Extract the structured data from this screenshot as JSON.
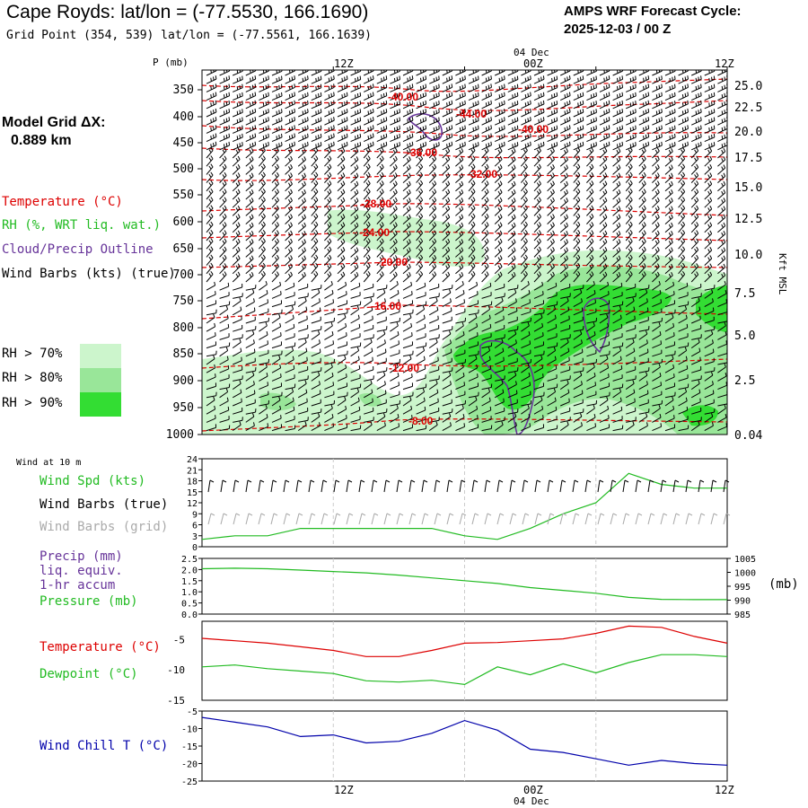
{
  "header": {
    "title": "Cape Royds:  lat/lon = (-77.5530, 166.1690)",
    "grid_point": "Grid Point (354, 539) lat/lon = (-77.5561, 166.1639)",
    "forecast_line1": "AMPS WRF Forecast Cycle:",
    "forecast_line2": "2025-12-03 / 00  Z"
  },
  "left_panel": {
    "model_grid_label": "Model Grid ΔX:",
    "model_grid_value": "0.889 km",
    "legend": {
      "temperature": "Temperature (°C)",
      "rh": "RH (%, WRT liq. wat.)",
      "cloud": "Cloud/Precip Outline",
      "wind": "Wind Barbs (kts) (true)"
    },
    "rh_levels": [
      "RH > 70%",
      "RH > 80%",
      "RH > 90%"
    ]
  },
  "time_axis": {
    "labels": [
      "12Z",
      "00Z",
      "12Z"
    ],
    "date_label": "04 Dec"
  },
  "colors": {
    "temperature": "#dd0000",
    "rh70": "#ccf5cc",
    "rh80": "#99e699",
    "rh90": "#33dd33",
    "cloud": "#663399",
    "green": "#22bb22",
    "dewpoint": "#22bb22",
    "windchill": "#0000aa",
    "grid_barbs": "#aaaaaa"
  },
  "chart_data": [
    {
      "type": "contour",
      "name": "upper-cross-section",
      "ylabel_left": "P (mb)",
      "ylabel_right": "Kft MSL",
      "pressure_ticks": [
        "350",
        "400",
        "450",
        "500",
        "550",
        "600",
        "650",
        "700",
        "750",
        "800",
        "850",
        "900",
        "950",
        "1000"
      ],
      "height_ticks": [
        "25.0",
        "22.5",
        "20.0",
        "17.5",
        "15.0",
        "12.5",
        "10.0",
        "7.5",
        "5.0",
        "2.5",
        "0.04"
      ],
      "temperature_contour_labels": [
        "-40.00",
        "-44.00",
        "-40.00",
        "-36.00",
        "-32.00",
        "-28.00",
        "-24.00",
        "-20.00",
        "-16.00",
        "-12.00",
        "-8.00"
      ]
    },
    {
      "type": "line",
      "name": "wind-10m",
      "panel_title": "Wind at 10 m",
      "labels": [
        "Wind Spd (kts)",
        "Wind Barbs (true)",
        "Wind Barbs (grid)"
      ],
      "y_ticks": [
        "24",
        "21",
        "18",
        "15",
        "12",
        "9",
        "6",
        "3",
        "0"
      ],
      "ylim": [
        0,
        24
      ],
      "series": [
        {
          "name": "Wind Spd (kts)",
          "x": [
            0,
            3,
            6,
            9,
            12,
            15,
            18,
            21,
            24,
            27,
            30,
            33,
            36,
            39,
            42,
            45,
            48
          ],
          "values": [
            2,
            3,
            3,
            5,
            5,
            5,
            5,
            5,
            3,
            2,
            5,
            9,
            12,
            20,
            17,
            16,
            16
          ]
        }
      ]
    },
    {
      "type": "line",
      "name": "precip-pressure",
      "labels": [
        "Precip (mm)",
        "liq. equiv.",
        "1-hr accum",
        "Pressure (mb)"
      ],
      "left_ticks": [
        "2.5",
        "2.0",
        "1.5",
        "1.0",
        "0.5",
        "0.0"
      ],
      "right_ticks": [
        "1005",
        "1000",
        "995",
        "990",
        "985"
      ],
      "right_unit": "(mb)",
      "left_ylim": [
        0,
        2.5
      ],
      "right_ylim": [
        985,
        1005
      ],
      "series": [
        {
          "name": "Pressure (mb)",
          "x": [
            0,
            3,
            6,
            9,
            12,
            15,
            18,
            21,
            24,
            27,
            30,
            33,
            36,
            39,
            42,
            45,
            48
          ],
          "values": [
            1001.3,
            1001.5,
            1001.3,
            1000.8,
            1000.3,
            999.8,
            999,
            998,
            997,
            996,
            994.5,
            993.5,
            992.5,
            991,
            990.3,
            990.2,
            990.2
          ]
        }
      ]
    },
    {
      "type": "line",
      "name": "temp-dewpoint",
      "labels": [
        "Temperature (°C)",
        "Dewpoint (°C)"
      ],
      "y_ticks": [
        "-5",
        "-10",
        "-15"
      ],
      "ylim": [
        -15,
        -2
      ],
      "series": [
        {
          "name": "Temperature",
          "x": [
            0,
            3,
            6,
            9,
            12,
            15,
            18,
            21,
            24,
            27,
            30,
            33,
            36,
            39,
            42,
            45,
            48
          ],
          "values": [
            -4.8,
            -5.2,
            -5.6,
            -6.2,
            -6.8,
            -7.8,
            -7.8,
            -6.8,
            -5.6,
            -5.5,
            -5.2,
            -4.9,
            -4.0,
            -2.8,
            -3.0,
            -4.5,
            -5.6
          ]
        },
        {
          "name": "Dewpoint",
          "x": [
            0,
            3,
            6,
            9,
            12,
            15,
            18,
            21,
            24,
            27,
            30,
            33,
            36,
            39,
            42,
            45,
            48
          ],
          "values": [
            -9.5,
            -9.2,
            -9.8,
            -10.2,
            -10.6,
            -11.8,
            -12.0,
            -11.7,
            -12.4,
            -9.5,
            -10.8,
            -9.0,
            -10.5,
            -8.8,
            -7.5,
            -7.5,
            -7.8
          ]
        }
      ]
    },
    {
      "type": "line",
      "name": "wind-chill",
      "labels": [
        "Wind Chill T (°C)"
      ],
      "y_ticks": [
        "-5",
        "-10",
        "-15",
        "-20",
        "-25"
      ],
      "ylim": [
        -25,
        -3
      ],
      "series": [
        {
          "name": "Wind Chill",
          "x": [
            0,
            3,
            6,
            9,
            12,
            15,
            18,
            21,
            24,
            27,
            30,
            33,
            36,
            39,
            42,
            45,
            48
          ],
          "values": [
            -5,
            -6.5,
            -8,
            -11,
            -10.5,
            -13,
            -12.5,
            -10,
            -6,
            -9,
            -15,
            -16,
            -18,
            -20,
            -18.5,
            -19.5,
            -20
          ]
        }
      ]
    }
  ]
}
